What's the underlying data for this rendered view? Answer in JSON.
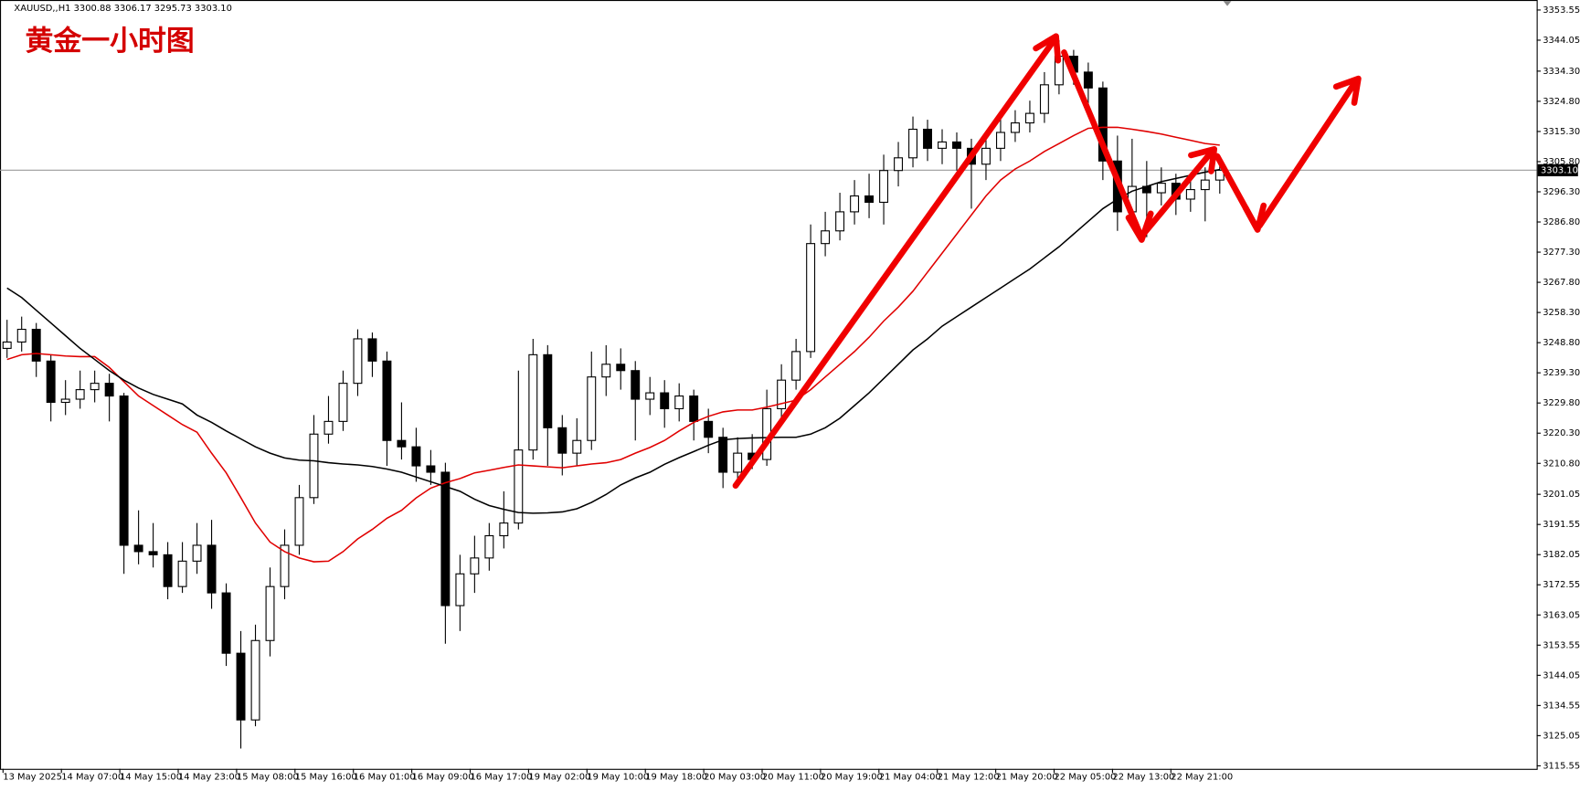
{
  "chart_data": {
    "type": "candlestick",
    "header": "XAUUSD,,H1  3300.88 3306.17 3295.73 3303.10",
    "title": "黄金一小时图",
    "up_color": "#ffffff",
    "down_color": "#000000",
    "candles": [
      [
        3247,
        3256,
        3244,
        3249
      ],
      [
        3249,
        3257,
        3246,
        3253
      ],
      [
        3253,
        3255,
        3238,
        3243
      ],
      [
        3243,
        3245,
        3224,
        3230
      ],
      [
        3230,
        3237,
        3226,
        3231
      ],
      [
        3231,
        3240,
        3228,
        3234
      ],
      [
        3234,
        3240,
        3230,
        3236
      ],
      [
        3236,
        3239,
        3224,
        3232
      ],
      [
        3232,
        3233,
        3176,
        3185
      ],
      [
        3185,
        3196,
        3179,
        3183
      ],
      [
        3183,
        3192,
        3178,
        3182
      ],
      [
        3182,
        3186,
        3168,
        3172
      ],
      [
        3172,
        3186,
        3170,
        3180
      ],
      [
        3180,
        3192,
        3176,
        3185
      ],
      [
        3185,
        3193,
        3165,
        3170
      ],
      [
        3170,
        3173,
        3147,
        3151
      ],
      [
        3151,
        3158,
        3121,
        3130
      ],
      [
        3130,
        3160,
        3128,
        3155
      ],
      [
        3155,
        3178,
        3150,
        3172
      ],
      [
        3172,
        3190,
        3168,
        3185
      ],
      [
        3185,
        3204,
        3182,
        3200
      ],
      [
        3200,
        3226,
        3198,
        3220
      ],
      [
        3220,
        3232,
        3217,
        3224
      ],
      [
        3224,
        3240,
        3221,
        3236
      ],
      [
        3236,
        3253,
        3232,
        3250
      ],
      [
        3250,
        3252,
        3238,
        3243
      ],
      [
        3243,
        3246,
        3210,
        3218
      ],
      [
        3218,
        3230,
        3212,
        3216
      ],
      [
        3216,
        3222,
        3205,
        3210
      ],
      [
        3210,
        3215,
        3204,
        3208
      ],
      [
        3208,
        3211,
        3154,
        3166
      ],
      [
        3166,
        3182,
        3158,
        3176
      ],
      [
        3176,
        3188,
        3170,
        3181
      ],
      [
        3181,
        3192,
        3177,
        3188
      ],
      [
        3188,
        3202,
        3184,
        3192
      ],
      [
        3192,
        3240,
        3190,
        3215
      ],
      [
        3215,
        3250,
        3212,
        3245
      ],
      [
        3245,
        3248,
        3210,
        3222
      ],
      [
        3222,
        3226,
        3207,
        3214
      ],
      [
        3214,
        3225,
        3210,
        3218
      ],
      [
        3218,
        3246,
        3215,
        3238
      ],
      [
        3238,
        3248,
        3232,
        3242
      ],
      [
        3242,
        3247,
        3234,
        3240
      ],
      [
        3240,
        3243,
        3218,
        3231
      ],
      [
        3231,
        3238,
        3226,
        3233
      ],
      [
        3233,
        3237,
        3222,
        3228
      ],
      [
        3228,
        3236,
        3224,
        3232
      ],
      [
        3232,
        3234,
        3218,
        3224
      ],
      [
        3224,
        3228,
        3214,
        3219
      ],
      [
        3219,
        3222,
        3203,
        3208
      ],
      [
        3208,
        3219,
        3205,
        3214
      ],
      [
        3214,
        3220,
        3209,
        3212
      ],
      [
        3212,
        3234,
        3210,
        3228
      ],
      [
        3228,
        3242,
        3225,
        3237
      ],
      [
        3237,
        3250,
        3234,
        3246
      ],
      [
        3246,
        3286,
        3244,
        3280
      ],
      [
        3280,
        3290,
        3276,
        3284
      ],
      [
        3284,
        3296,
        3281,
        3290
      ],
      [
        3290,
        3300,
        3286,
        3295
      ],
      [
        3295,
        3302,
        3288,
        3293
      ],
      [
        3293,
        3308,
        3286,
        3303
      ],
      [
        3303,
        3312,
        3298,
        3307
      ],
      [
        3307,
        3320,
        3304,
        3316
      ],
      [
        3316,
        3319,
        3306,
        3310
      ],
      [
        3310,
        3316,
        3305,
        3312
      ],
      [
        3312,
        3315,
        3303,
        3310
      ],
      [
        3310,
        3313,
        3291,
        3305
      ],
      [
        3305,
        3314,
        3300,
        3310
      ],
      [
        3310,
        3319,
        3306,
        3315
      ],
      [
        3315,
        3322,
        3312,
        3318
      ],
      [
        3318,
        3325,
        3315,
        3321
      ],
      [
        3321,
        3334,
        3318,
        3330
      ],
      [
        3330,
        3344,
        3327,
        3339
      ],
      [
        3339,
        3341,
        3330,
        3334
      ],
      [
        3334,
        3337,
        3322,
        3329
      ],
      [
        3329,
        3331,
        3300,
        3306
      ],
      [
        3306,
        3314,
        3284,
        3290
      ],
      [
        3290,
        3313,
        3286,
        3298
      ],
      [
        3298,
        3306,
        3282,
        3296
      ],
      [
        3296,
        3304,
        3292,
        3299
      ],
      [
        3299,
        3302,
        3289,
        3294
      ],
      [
        3294,
        3300,
        3290,
        3297
      ],
      [
        3297,
        3304,
        3287,
        3300
      ],
      [
        3300,
        3306.17,
        3295.73,
        3303.1
      ]
    ],
    "series": [
      {
        "color": "#e00000",
        "values": [
          3243.5,
          3245,
          3245.4,
          3245,
          3244.6,
          3244.4,
          3244.4,
          3241,
          3236.5,
          3232,
          3229,
          3226,
          3223,
          3220.6,
          3214,
          3207.8,
          3200,
          3192,
          3186,
          3183,
          3181,
          3179.8,
          3180,
          3183,
          3187,
          3190,
          3193.5,
          3196,
          3199.9,
          3203,
          3204.7,
          3206,
          3207.8,
          3208.6,
          3209.5,
          3210.3,
          3210,
          3209.7,
          3209.4,
          3210,
          3210.6,
          3211,
          3212,
          3214,
          3215.8,
          3218,
          3221,
          3223.7,
          3225.6,
          3227,
          3227.6,
          3227.6,
          3228.5,
          3229.6,
          3230.7,
          3234,
          3238,
          3242,
          3246,
          3250.5,
          3255.6,
          3260,
          3265,
          3271,
          3277,
          3283,
          3289,
          3295,
          3300,
          3303.5,
          3306,
          3309,
          3311.5,
          3314,
          3316.3,
          3316.6,
          3316.6,
          3316,
          3315.3,
          3314.5,
          3313.5,
          3312.5,
          3311.5,
          3311
        ]
      },
      {
        "color": "#000000",
        "values": [
          3266,
          3263,
          3259,
          3255,
          3251,
          3247,
          3243.5,
          3240,
          3237,
          3234.5,
          3232.5,
          3231,
          3229.5,
          3226,
          3223.7,
          3221,
          3218.5,
          3216,
          3214,
          3212.5,
          3211.8,
          3211.6,
          3211,
          3210.6,
          3210.3,
          3209.8,
          3209,
          3208,
          3206.5,
          3205,
          3203.5,
          3202,
          3199.5,
          3197.5,
          3196.3,
          3195.3,
          3195.1,
          3195.2,
          3195.5,
          3196.5,
          3198.5,
          3201,
          3204,
          3206.2,
          3208,
          3210.5,
          3212.6,
          3214.5,
          3216.5,
          3218.2,
          3218.6,
          3218.8,
          3218.9,
          3219,
          3219,
          3220,
          3222,
          3225,
          3229,
          3233,
          3237.5,
          3242,
          3246.5,
          3250,
          3254,
          3257,
          3260,
          3263,
          3266,
          3269,
          3272,
          3275.5,
          3279,
          3283,
          3287,
          3291,
          3294,
          3296.5,
          3298,
          3299.5,
          3300.5,
          3301.5,
          3302.5,
          3303.3
        ]
      }
    ],
    "ylim": [
      3114.6,
      3356.7
    ],
    "yticks": [
      {
        "value": 3353.55,
        "label": "3353.55"
      },
      {
        "value": 3344.05,
        "label": "3344.05"
      },
      {
        "value": 3334.3,
        "label": "3334.30"
      },
      {
        "value": 3324.8,
        "label": "3324.80"
      },
      {
        "value": 3315.3,
        "label": "3315.30"
      },
      {
        "value": 3305.8,
        "label": "3305.80"
      },
      {
        "value": 3296.3,
        "label": "3296.30"
      },
      {
        "value": 3286.8,
        "label": "3286.80"
      },
      {
        "value": 3277.3,
        "label": "3277.30"
      },
      {
        "value": 3267.8,
        "label": "3267.80"
      },
      {
        "value": 3258.3,
        "label": "3258.30"
      },
      {
        "value": 3248.8,
        "label": "3248.80"
      },
      {
        "value": 3239.3,
        "label": "3239.30"
      },
      {
        "value": 3229.8,
        "label": "3229.80"
      },
      {
        "value": 3220.3,
        "label": "3220.30"
      },
      {
        "value": 3210.8,
        "label": "3210.80"
      },
      {
        "value": 3201.05,
        "label": "3201.05"
      },
      {
        "value": 3191.55,
        "label": "3191.55"
      },
      {
        "value": 3182.05,
        "label": "3182.05"
      },
      {
        "value": 3172.55,
        "label": "3172.55"
      },
      {
        "value": 3163.05,
        "label": "3163.05"
      },
      {
        "value": 3153.55,
        "label": "3153.55"
      },
      {
        "value": 3144.05,
        "label": "3144.05"
      },
      {
        "value": 3134.55,
        "label": "3134.55"
      },
      {
        "value": 3125.05,
        "label": "3125.05"
      },
      {
        "value": 3115.55,
        "label": "3115.55"
      }
    ],
    "current_price": {
      "value": 3303.1,
      "label": "3303.10"
    },
    "x_labels": [
      "13 May 2025",
      "14 May 07:00",
      "14 May 15:00",
      "14 May 23:00",
      "15 May 08:00",
      "15 May 16:00",
      "16 May 01:00",
      "16 May 09:00",
      "16 May 17:00",
      "19 May 02:00",
      "19 May 10:00",
      "19 May 18:00",
      "20 May 03:00",
      "20 May 11:00",
      "20 May 19:00",
      "21 May 04:00",
      "21 May 12:00",
      "21 May 20:00",
      "22 May 05:00",
      "22 May 13:00",
      "22 May 21:00"
    ]
  }
}
